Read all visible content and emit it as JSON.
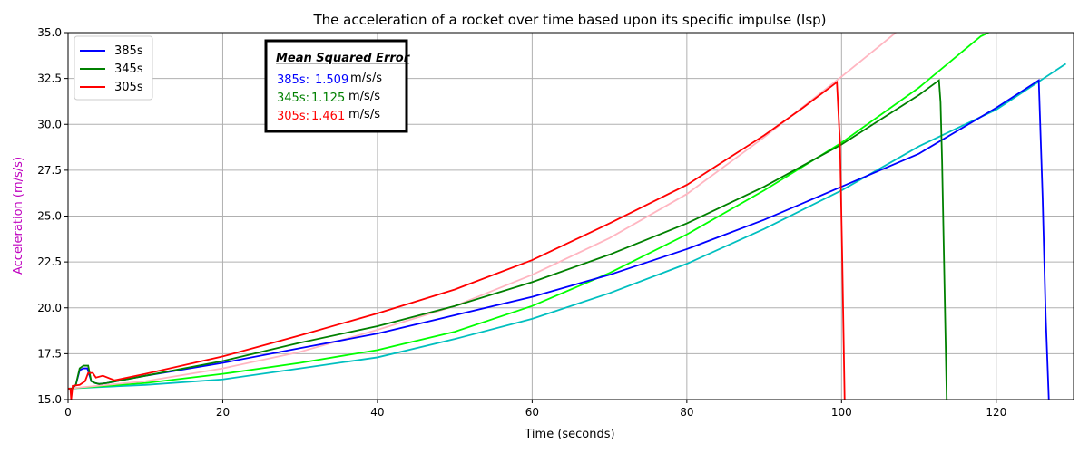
{
  "chart_data": {
    "type": "line",
    "title": "The acceleration of a rocket over time based upon its specific impulse (Isp)",
    "xlabel": "Time (seconds)",
    "ylabel": "Acceleration (m/s/s)",
    "ylabel_color": "#bf00bf",
    "xlim": [
      0,
      130
    ],
    "ylim": [
      15.0,
      35.0
    ],
    "x_ticks": [
      0,
      20,
      40,
      60,
      80,
      100,
      120
    ],
    "y_ticks": [
      "15.0",
      "17.5",
      "20.0",
      "22.5",
      "25.0",
      "27.5",
      "30.0",
      "32.5",
      "35.0"
    ],
    "grid": true,
    "legend_placement": "top-left",
    "legend": [
      {
        "name": "385s",
        "color": "#0000ff"
      },
      {
        "name": "345s",
        "color": "#008000"
      },
      {
        "name": "305s",
        "color": "#ff0000"
      }
    ],
    "mse_box": {
      "title": "Mean Squared Error",
      "unit": "m/s/s",
      "entries": [
        {
          "label": "385s:",
          "value": "1.509",
          "color": "#0000ff"
        },
        {
          "label": "345s:",
          "value": "1.125",
          "color": "#008000"
        },
        {
          "label": "305s:",
          "value": "1.461",
          "color": "#ff0000"
        }
      ]
    },
    "series": [
      {
        "name": "385s",
        "color": "#0000ff",
        "points": [
          [
            0,
            15.6
          ],
          [
            0.5,
            15.6
          ],
          [
            1,
            15.8
          ],
          [
            1.5,
            16.6
          ],
          [
            2,
            16.7
          ],
          [
            2.5,
            16.7
          ],
          [
            3,
            16.0
          ],
          [
            3.5,
            15.9
          ],
          [
            4,
            15.85
          ],
          [
            5,
            15.9
          ],
          [
            10,
            16.3
          ],
          [
            20,
            17.0
          ],
          [
            30,
            17.8
          ],
          [
            40,
            18.6
          ],
          [
            50,
            19.6
          ],
          [
            60,
            20.6
          ],
          [
            70,
            21.8
          ],
          [
            80,
            23.2
          ],
          [
            90,
            24.8
          ],
          [
            100,
            26.6
          ],
          [
            110,
            28.4
          ],
          [
            120,
            30.9
          ],
          [
            125.5,
            32.4
          ],
          [
            126.0,
            26.0
          ],
          [
            126.4,
            19.5
          ],
          [
            126.8,
            15.0
          ]
        ]
      },
      {
        "name": "345s",
        "color": "#008000",
        "points": [
          [
            0,
            15.6
          ],
          [
            0.5,
            15.6
          ],
          [
            1,
            15.8
          ],
          [
            1.5,
            16.7
          ],
          [
            2,
            16.85
          ],
          [
            2.6,
            16.85
          ],
          [
            3,
            16.0
          ],
          [
            3.5,
            15.9
          ],
          [
            4,
            15.85
          ],
          [
            5,
            15.9
          ],
          [
            10,
            16.3
          ],
          [
            20,
            17.1
          ],
          [
            30,
            18.1
          ],
          [
            40,
            19.0
          ],
          [
            50,
            20.1
          ],
          [
            60,
            21.4
          ],
          [
            70,
            22.9
          ],
          [
            80,
            24.6
          ],
          [
            90,
            26.6
          ],
          [
            100,
            28.9
          ],
          [
            110,
            31.6
          ],
          [
            112.6,
            32.4
          ],
          [
            112.8,
            31.2
          ],
          [
            113.0,
            28.0
          ],
          [
            113.6,
            15.0
          ]
        ]
      },
      {
        "name": "305s",
        "color": "#ff0000",
        "points": [
          [
            0,
            15.6
          ],
          [
            0.3,
            15.6
          ],
          [
            0.4,
            15.0
          ],
          [
            0.6,
            15.75
          ],
          [
            1.5,
            15.8
          ],
          [
            2.2,
            16.0
          ],
          [
            2.6,
            16.45
          ],
          [
            3.2,
            16.45
          ],
          [
            3.6,
            16.2
          ],
          [
            4.5,
            16.3
          ],
          [
            6,
            16.05
          ],
          [
            10,
            16.4
          ],
          [
            20,
            17.35
          ],
          [
            30,
            18.5
          ],
          [
            40,
            19.7
          ],
          [
            50,
            21.0
          ],
          [
            60,
            22.6
          ],
          [
            70,
            24.6
          ],
          [
            80,
            26.7
          ],
          [
            90,
            29.4
          ],
          [
            95,
            30.9
          ],
          [
            99.4,
            32.3
          ],
          [
            99.8,
            29.0
          ],
          [
            100.1,
            22.5
          ],
          [
            100.4,
            15.0
          ]
        ]
      },
      {
        "color": "#00ff00",
        "points": [
          [
            0,
            15.6
          ],
          [
            10,
            15.9
          ],
          [
            20,
            16.4
          ],
          [
            30,
            17.0
          ],
          [
            40,
            17.7
          ],
          [
            50,
            18.7
          ],
          [
            60,
            20.1
          ],
          [
            70,
            21.9
          ],
          [
            80,
            24.0
          ],
          [
            90,
            26.4
          ],
          [
            100,
            29.0
          ],
          [
            110,
            32.0
          ],
          [
            118,
            34.8
          ],
          [
            119,
            35.0
          ]
        ]
      },
      {
        "color": "#00bfbf",
        "points": [
          [
            0,
            15.6
          ],
          [
            10,
            15.8
          ],
          [
            20,
            16.1
          ],
          [
            30,
            16.7
          ],
          [
            40,
            17.3
          ],
          [
            50,
            18.3
          ],
          [
            60,
            19.4
          ],
          [
            70,
            20.8
          ],
          [
            80,
            22.4
          ],
          [
            90,
            24.3
          ],
          [
            100,
            26.4
          ],
          [
            110,
            28.8
          ],
          [
            120,
            30.8
          ],
          [
            129,
            33.3
          ]
        ]
      },
      {
        "color": "#ffb6c1",
        "points": [
          [
            0,
            15.6
          ],
          [
            10,
            16.0
          ],
          [
            20,
            16.7
          ],
          [
            30,
            17.6
          ],
          [
            40,
            18.8
          ],
          [
            50,
            20.1
          ],
          [
            60,
            21.8
          ],
          [
            70,
            23.8
          ],
          [
            80,
            26.2
          ],
          [
            90,
            29.3
          ],
          [
            100,
            32.6
          ],
          [
            105,
            34.3
          ],
          [
            107,
            35.0
          ]
        ]
      }
    ]
  }
}
